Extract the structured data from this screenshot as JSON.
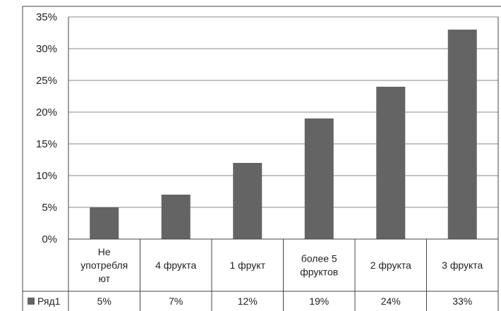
{
  "chart_data": {
    "type": "bar",
    "categories": [
      "Не употребля ют",
      "4 фрукта",
      "1 фрукт",
      "более 5 фруктов",
      "2 фрукта",
      "3 фрукта"
    ],
    "category_lines": [
      [
        "Не",
        "употребля",
        "ют"
      ],
      [
        "4 фрукта"
      ],
      [
        "1 фрукт"
      ],
      [
        "более 5",
        "фруктов"
      ],
      [
        "2 фрукта"
      ],
      [
        "3 фрукта"
      ]
    ],
    "series": [
      {
        "name": "Ряд1",
        "values": [
          0.05,
          0.07,
          0.12,
          0.19,
          0.24,
          0.33
        ],
        "value_labels": [
          "5%",
          "7%",
          "12%",
          "19%",
          "24%",
          "33%"
        ]
      }
    ],
    "ylim": [
      0,
      0.35
    ],
    "y_ticks": [
      0,
      0.05,
      0.1,
      0.15,
      0.2,
      0.25,
      0.3,
      0.35
    ],
    "y_tick_labels": [
      "0%",
      "5%",
      "10%",
      "15%",
      "20%",
      "25%",
      "30%",
      "35%"
    ],
    "grid": true,
    "legend": "data-table",
    "data_table": true,
    "title": "",
    "xlabel": "",
    "ylabel": ""
  },
  "colors": {
    "bar": "#646464",
    "grid": "#8a8a8a",
    "border": "#444444",
    "text": "#222222"
  }
}
